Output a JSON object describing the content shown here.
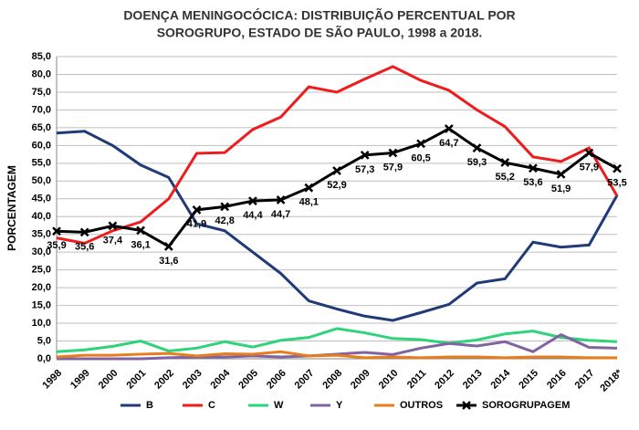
{
  "chart_data": {
    "type": "line",
    "title": [
      "DOENÇA MENINGOCÓCICA: DISTRIBUIÇÃO PERCENTUAL POR",
      "SOROGRUPO, ESTADO DE SÃO PAULO, 1998 a 2018."
    ],
    "y_label": "PORCENTAGEM",
    "categories": [
      "1998",
      "1999",
      "2000",
      "2001",
      "2002",
      "2003",
      "2004",
      "2005",
      "2006",
      "2007",
      "2008",
      "2009",
      "2010",
      "2011",
      "2012",
      "2013",
      "2014",
      "2015",
      "2016",
      "2017",
      "2018*"
    ],
    "series": [
      {
        "name": "B",
        "color": "#1f3a77",
        "values": [
          63.5,
          64,
          60,
          54.5,
          51,
          38,
          36,
          30,
          24,
          16.3,
          14,
          12,
          10.8,
          13,
          15.3,
          21.3,
          22.5,
          32.8,
          31.4,
          32,
          46
        ]
      },
      {
        "name": "C",
        "color": "#ee1c1c",
        "values": [
          34,
          32.5,
          36,
          38.5,
          45,
          57.8,
          58,
          64.5,
          68,
          76.5,
          75,
          78.7,
          82.2,
          78.3,
          75.5,
          70,
          65.3,
          56.8,
          55.5,
          59.3,
          45.8
        ]
      },
      {
        "name": "W",
        "color": "#2ed47a",
        "values": [
          2,
          2.5,
          3.5,
          5,
          2.2,
          3,
          4.8,
          3.3,
          5.2,
          6,
          8.5,
          7.3,
          5.7,
          5.4,
          4.4,
          5.3,
          7,
          7.8,
          6,
          5.2,
          4.8
        ]
      },
      {
        "name": "Y",
        "color": "#8064a2",
        "values": [
          0,
          0,
          0,
          0,
          0.3,
          0.5,
          0.5,
          0.8,
          0.5,
          0.8,
          1.3,
          1.8,
          1.2,
          3,
          4.3,
          3.6,
          4.8,
          2,
          6.8,
          3.2,
          3
        ]
      },
      {
        "name": "OUTROS",
        "color": "#e87d1e",
        "values": [
          0.5,
          1,
          1,
          1.3,
          1.5,
          0.8,
          1.4,
          1.3,
          2,
          0.8,
          1,
          0.3,
          0.5,
          0.3,
          0.5,
          0.5,
          0.3,
          0.5,
          0.5,
          0.3,
          0.3
        ]
      },
      {
        "name": "SOROGRUPAGEM",
        "color": "#000000",
        "marker": "x",
        "values": [
          35.9,
          35.6,
          37.4,
          36.1,
          31.6,
          41.9,
          42.8,
          44.4,
          44.7,
          48.1,
          52.9,
          57.3,
          57.9,
          60.5,
          64.7,
          59.3,
          55.2,
          53.6,
          51.9,
          57.9,
          53.5
        ],
        "value_labels": [
          "35,9",
          "35,6",
          "37,4",
          "36,1",
          "31,6",
          "41,9",
          "42,8",
          "44,4",
          "44,7",
          "48,1",
          "52,9",
          "57,3",
          "57,9",
          "60,5",
          "64,7",
          "59,3",
          "55,2",
          "53,6",
          "51,9",
          "57,9",
          "53,5"
        ]
      }
    ],
    "ylim": [
      0,
      85
    ],
    "yticks": [
      {
        "value": 0,
        "label": "0,0"
      },
      {
        "value": 5,
        "label": "5,0"
      },
      {
        "value": 10,
        "label": "10,0"
      },
      {
        "value": 15,
        "label": "15,0"
      },
      {
        "value": 20,
        "label": "20,0"
      },
      {
        "value": 25,
        "label": "25,0"
      },
      {
        "value": 30,
        "label": "30,0"
      },
      {
        "value": 35,
        "label": "35,0"
      },
      {
        "value": 40,
        "label": "40,0"
      },
      {
        "value": 45,
        "label": "45,0"
      },
      {
        "value": 50,
        "label": "50,0"
      },
      {
        "value": 55,
        "label": "55,0"
      },
      {
        "value": 60,
        "label": "60,0"
      },
      {
        "value": 65,
        "label": "65,0"
      },
      {
        "value": 70,
        "label": "70,0"
      },
      {
        "value": 75,
        "label": "75,0"
      },
      {
        "value": 80,
        "label": "80,0"
      },
      {
        "value": 85,
        "label": "85,0"
      }
    ],
    "grid": true,
    "legend": "bottom"
  }
}
